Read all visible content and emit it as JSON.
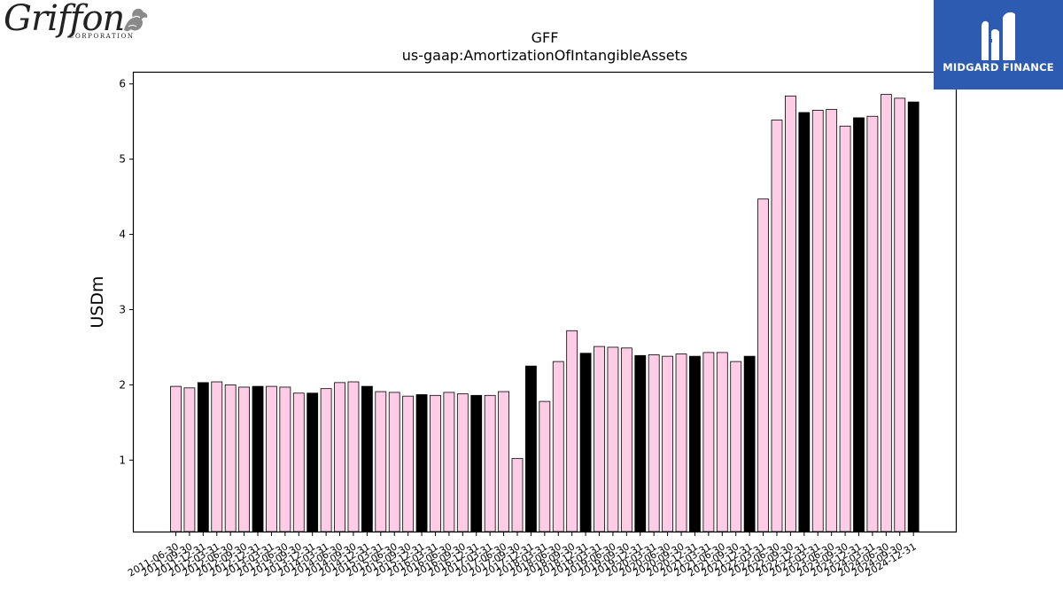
{
  "brand": {
    "left_logo_word": "Griffon",
    "left_logo_sub": "CORPORATION",
    "right_logo_text": "MIDGARD FINANCE"
  },
  "colors": {
    "bar_default": "#ffcce6",
    "bar_highlight": "#000000",
    "bar_edge": "#000000",
    "axis": "#000000",
    "midgard_bg": "#2d5bb1"
  },
  "chart_data": {
    "type": "bar",
    "title": "GFF",
    "subtitle": "us-gaap:AmortizationOfIntangibleAssets",
    "ylabel": "USDm",
    "xlabel": "",
    "ylim": [
      0.05,
      6.15
    ],
    "yticks": [
      1,
      2,
      3,
      4,
      5,
      6
    ],
    "grid": false,
    "categories": [
      "2011-06-30",
      "2011-09-30",
      "2011-12-31",
      "2012-03-31",
      "2012-06-30",
      "2012-09-30",
      "2012-12-31",
      "2013-03-31",
      "2013-06-30",
      "2013-09-30",
      "2013-12-31",
      "2014-03-31",
      "2014-06-30",
      "2014-09-30",
      "2014-12-31",
      "2015-03-31",
      "2015-06-30",
      "2015-09-30",
      "2015-12-31",
      "2016-03-31",
      "2016-06-30",
      "2016-09-30",
      "2016-12-31",
      "2017-03-31",
      "2017-06-30",
      "2017-09-30",
      "2017-12-31",
      "2018-03-31",
      "2018-06-30",
      "2018-09-30",
      "2018-12-31",
      "2019-03-31",
      "2019-06-30",
      "2019-09-30",
      "2019-12-31",
      "2020-03-31",
      "2020-06-30",
      "2020-09-30",
      "2020-12-31",
      "2021-03-31",
      "2021-06-30",
      "2021-09-30",
      "2021-12-31",
      "2022-03-31",
      "2022-06-30",
      "2022-09-30",
      "2022-12-31",
      "2023-03-31",
      "2023-06-30",
      "2023-09-30",
      "2023-12-31",
      "2024-03-31",
      "2024-06-30",
      "2024-09-30",
      "2024-12-31"
    ],
    "values": [
      1.98,
      1.96,
      2.03,
      2.04,
      2.0,
      1.97,
      1.98,
      1.98,
      1.97,
      1.89,
      1.89,
      1.95,
      2.03,
      2.04,
      1.98,
      1.91,
      1.9,
      1.85,
      1.87,
      1.86,
      1.9,
      1.88,
      1.86,
      1.86,
      1.91,
      1.02,
      2.25,
      1.78,
      2.31,
      2.72,
      2.42,
      2.51,
      2.5,
      2.49,
      2.39,
      2.4,
      2.38,
      2.41,
      2.38,
      2.43,
      2.43,
      2.31,
      2.38,
      4.47,
      5.52,
      5.84,
      5.62,
      5.65,
      5.66,
      5.44,
      5.55,
      5.57,
      5.86,
      5.81,
      5.76
    ],
    "highlight": [
      false,
      false,
      true,
      false,
      false,
      false,
      true,
      false,
      false,
      false,
      true,
      false,
      false,
      false,
      true,
      false,
      false,
      false,
      true,
      false,
      false,
      false,
      true,
      false,
      false,
      false,
      true,
      false,
      false,
      false,
      true,
      false,
      false,
      false,
      true,
      false,
      false,
      false,
      true,
      false,
      false,
      false,
      true,
      false,
      false,
      false,
      true,
      false,
      false,
      false,
      true,
      false,
      false,
      false,
      true
    ]
  }
}
